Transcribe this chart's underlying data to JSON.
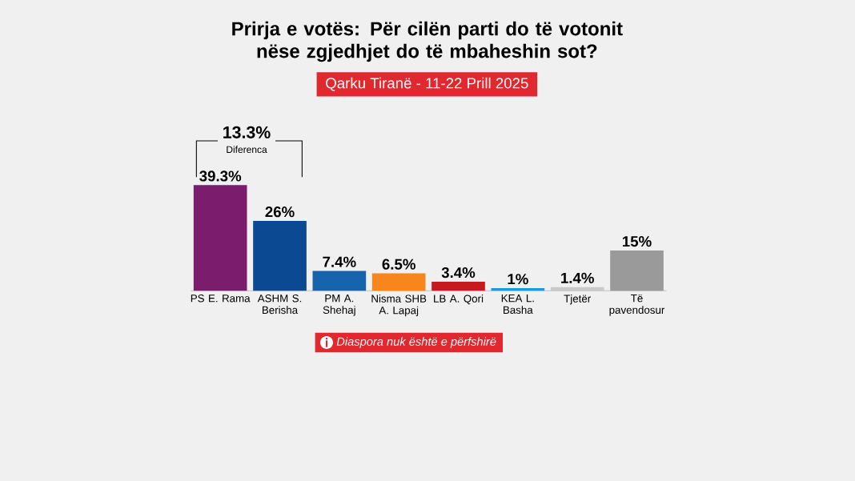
{
  "chart_data": {
    "type": "bar",
    "title": "Prirja e votës: Për cilën parti do të votonit nëse zgjedhjet do të mbaheshin sot?",
    "subtitle": "Qarku Tiranë - 11-22 Prill 2025",
    "categories": [
      "PS E. Rama",
      "ASHM S. Berisha",
      "PM A. Shehaj",
      "Nisma SHB A. Lapaj",
      "LB A. Qori",
      "KEA L. Basha",
      "Tjetër",
      "Të pavendosur"
    ],
    "values": [
      39.3,
      26,
      7.4,
      6.5,
      3.4,
      1,
      1.4,
      15
    ],
    "colors": [
      "#7b1c6c",
      "#0b4a93",
      "#1664ad",
      "#f7861f",
      "#c41a20",
      "#1a9ad8",
      "#c9c9c9",
      "#9a9a9a"
    ],
    "value_labels": [
      "39.3%",
      "26%",
      "7.4%",
      "6.5%",
      "3.4%",
      "1%",
      "1.4%",
      "15%"
    ],
    "annotations": [
      "13.3%",
      "Diferenca",
      "Diaspora nuk është e përfshirë"
    ]
  }
}
